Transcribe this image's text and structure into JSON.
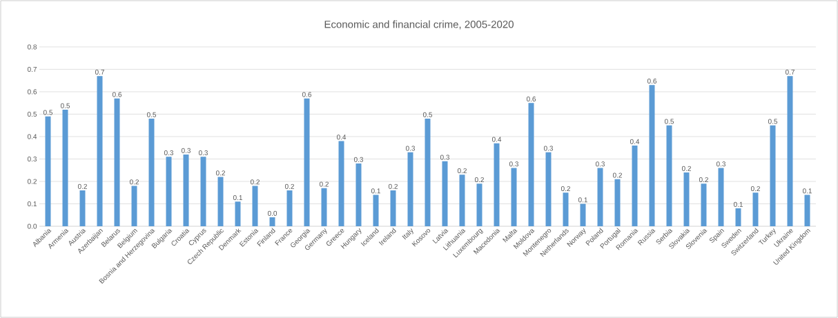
{
  "chart_data": {
    "type": "bar",
    "title": "Economic and financial crime, 2005-2020",
    "categories": [
      "Albania",
      "Armenia",
      "Austria",
      "Azerbaijan",
      "Belarus",
      "Belgium",
      "Bosnia and Herzegovina",
      "Bulgaria",
      "Croatia",
      "Cyprus",
      "Czech Republic",
      "Denmark",
      "Estonia",
      "Finland",
      "France",
      "Georgia",
      "Germany",
      "Greece",
      "Hungary",
      "Iceland",
      "Ireland",
      "Italy",
      "Kosovo",
      "Latvia",
      "Lithuania",
      "Luxembourg",
      "Macedonia",
      "Malta",
      "Moldova",
      "Montenegro",
      "Netherlands",
      "Norway",
      "Poland",
      "Portugal",
      "Romania",
      "Russia",
      "Serbia",
      "Slovakia",
      "Slovenia",
      "Spain",
      "Sweden",
      "Switzerland",
      "Turkey",
      "Ukraine",
      "United Kingdom"
    ],
    "values": [
      0.49,
      0.52,
      0.16,
      0.67,
      0.57,
      0.18,
      0.48,
      0.31,
      0.32,
      0.31,
      0.22,
      0.11,
      0.18,
      0.04,
      0.16,
      0.57,
      0.17,
      0.38,
      0.28,
      0.14,
      0.16,
      0.33,
      0.48,
      0.29,
      0.23,
      0.19,
      0.37,
      0.26,
      0.55,
      0.33,
      0.15,
      0.1,
      0.26,
      0.21,
      0.36,
      0.63,
      0.45,
      0.24,
      0.19,
      0.26,
      0.08,
      0.15,
      0.45,
      0.67,
      0.14
    ],
    "value_labels": [
      "0.5",
      "0.5",
      "0.2",
      "0.7",
      "0.6",
      "0.2",
      "0.5",
      "0.3",
      "0.3",
      "0.3",
      "0.2",
      "0.1",
      "0.2",
      "0.0",
      "0.2",
      "0.6",
      "0.2",
      "0.4",
      "0.3",
      "0.1",
      "0.2",
      "0.3",
      "0.5",
      "0.3",
      "0.2",
      "0.2",
      "0.4",
      "0.3",
      "0.6",
      "0.3",
      "0.2",
      "0.1",
      "0.3",
      "0.2",
      "0.4",
      "0.6",
      "0.5",
      "0.2",
      "0.2",
      "0.3",
      "0.1",
      "0.2",
      "0.5",
      "0.7",
      "0.1"
    ],
    "color": "#5b9bd5",
    "ylim": [
      0,
      0.8
    ],
    "yticks": [
      {
        "value": 0,
        "label": "0.0"
      },
      0.1,
      0.2,
      0.3,
      0.4,
      0.5,
      0.6,
      0.7,
      0.8
    ],
    "grid": "y"
  }
}
